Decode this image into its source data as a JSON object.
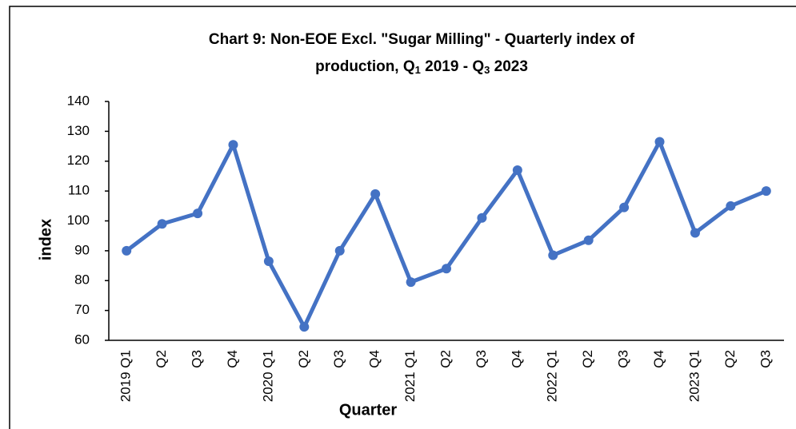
{
  "chart_data": {
    "type": "line",
    "title": [
      "Chart 9: Non-EOE Excl. \"Sugar Milling\" - Quarterly index of",
      "production, Q",
      "1",
      " 2019 - Q",
      "3",
      " 2023"
    ],
    "x_label": "Quarter",
    "y_label": "index",
    "categories": [
      "2019 Q1",
      "Q2",
      "Q3",
      "Q4",
      "2020 Q1",
      "Q2",
      "Q3",
      "Q4",
      "2021 Q1",
      "Q2",
      "Q3",
      "Q4",
      "2022 Q1",
      "Q2",
      "Q3",
      "Q4",
      "2023 Q1",
      "Q2",
      "Q3"
    ],
    "series": [
      {
        "name": "index",
        "color": "#4472c4",
        "values": [
          90,
          99,
          102.5,
          125.5,
          86.5,
          64.5,
          90,
          109,
          79.5,
          84,
          101,
          117,
          88.5,
          93.5,
          104.5,
          126.5,
          96,
          105,
          110
        ]
      }
    ],
    "ylim": [
      60,
      140
    ],
    "yticks": [
      60,
      70,
      80,
      90,
      100,
      110,
      120,
      130,
      140
    ],
    "grid": false
  }
}
